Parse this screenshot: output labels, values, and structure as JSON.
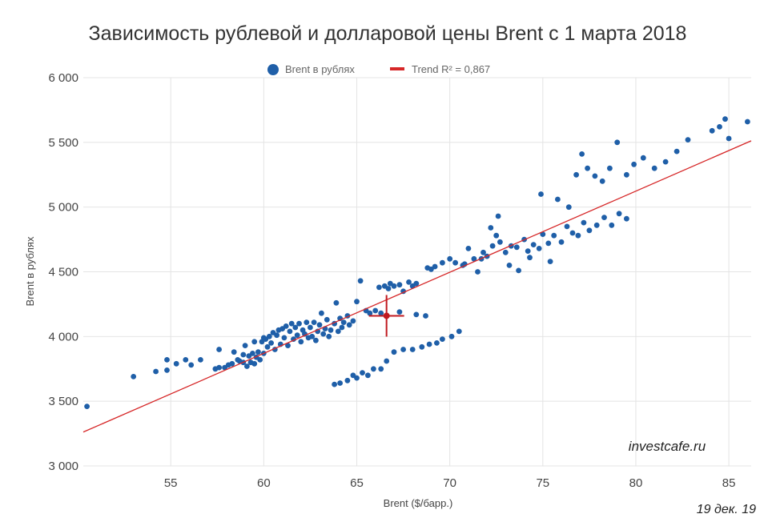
{
  "chart_data": {
    "type": "scatter",
    "title": "Зависимость рублевой и долларовой цены Brent с 1 марта 2018",
    "xlabel": "Brent ($/барр.)",
    "ylabel": "Brent в рублях",
    "xlim": [
      50.3,
      86.2
    ],
    "ylim": [
      3000,
      6000
    ],
    "xticks": [
      55,
      60,
      65,
      70,
      75,
      80,
      85
    ],
    "yticks": [
      3000,
      3500,
      4000,
      4500,
      5000,
      5500,
      6000
    ],
    "xtick_labels": [
      "55",
      "60",
      "65",
      "70",
      "75",
      "80",
      "85"
    ],
    "ytick_labels": [
      "3 000",
      "3 500",
      "4 000",
      "4 500",
      "5 000",
      "5 500",
      "6 000"
    ],
    "grid": true,
    "legend_position": "top-center",
    "colors": {
      "series": "#1f5fa8",
      "trend": "#d62728",
      "cross": "#c0191f"
    },
    "series": [
      {
        "name": "Brent в рублях",
        "points": [
          [
            50.5,
            3460
          ],
          [
            53.0,
            3690
          ],
          [
            54.2,
            3730
          ],
          [
            54.8,
            3740
          ],
          [
            54.8,
            3820
          ],
          [
            55.3,
            3790
          ],
          [
            55.8,
            3820
          ],
          [
            56.1,
            3780
          ],
          [
            56.6,
            3820
          ],
          [
            57.4,
            3750
          ],
          [
            57.6,
            3900
          ],
          [
            57.6,
            3760
          ],
          [
            57.9,
            3760
          ],
          [
            58.1,
            3780
          ],
          [
            58.3,
            3790
          ],
          [
            58.4,
            3880
          ],
          [
            58.6,
            3820
          ],
          [
            58.7,
            3810
          ],
          [
            58.9,
            3860
          ],
          [
            58.9,
            3800
          ],
          [
            59.0,
            3930
          ],
          [
            59.1,
            3770
          ],
          [
            59.2,
            3850
          ],
          [
            59.3,
            3800
          ],
          [
            59.4,
            3870
          ],
          [
            59.5,
            3790
          ],
          [
            59.5,
            3960
          ],
          [
            59.6,
            3840
          ],
          [
            59.7,
            3880
          ],
          [
            59.8,
            3820
          ],
          [
            59.9,
            3960
          ],
          [
            60.0,
            3870
          ],
          [
            60.0,
            3990
          ],
          [
            60.1,
            3980
          ],
          [
            60.2,
            3920
          ],
          [
            60.3,
            4000
          ],
          [
            60.4,
            3950
          ],
          [
            60.5,
            4030
          ],
          [
            60.6,
            3900
          ],
          [
            60.7,
            4010
          ],
          [
            60.8,
            4050
          ],
          [
            60.9,
            3940
          ],
          [
            61.0,
            4060
          ],
          [
            61.1,
            3990
          ],
          [
            61.2,
            4080
          ],
          [
            61.3,
            3930
          ],
          [
            61.4,
            4040
          ],
          [
            61.5,
            4100
          ],
          [
            61.6,
            3980
          ],
          [
            61.7,
            4070
          ],
          [
            61.8,
            4010
          ],
          [
            61.9,
            4100
          ],
          [
            62.0,
            3960
          ],
          [
            62.1,
            4050
          ],
          [
            62.2,
            4020
          ],
          [
            62.3,
            4110
          ],
          [
            62.4,
            3990
          ],
          [
            62.5,
            4070
          ],
          [
            62.6,
            4000
          ],
          [
            62.7,
            4110
          ],
          [
            62.8,
            3970
          ],
          [
            62.9,
            4040
          ],
          [
            63.0,
            4090
          ],
          [
            63.1,
            4180
          ],
          [
            63.2,
            4020
          ],
          [
            63.3,
            4060
          ],
          [
            63.4,
            4130
          ],
          [
            63.5,
            4000
          ],
          [
            63.6,
            4050
          ],
          [
            63.8,
            4100
          ],
          [
            63.9,
            4260
          ],
          [
            64.0,
            4040
          ],
          [
            64.1,
            4140
          ],
          [
            64.2,
            4070
          ],
          [
            64.3,
            4110
          ],
          [
            64.5,
            4160
          ],
          [
            64.6,
            4090
          ],
          [
            64.8,
            4120
          ],
          [
            65.0,
            4270
          ],
          [
            65.2,
            4430
          ],
          [
            65.5,
            4200
          ],
          [
            65.7,
            4180
          ],
          [
            66.0,
            4200
          ],
          [
            66.2,
            4380
          ],
          [
            66.3,
            4180
          ],
          [
            66.5,
            4390
          ],
          [
            66.7,
            4370
          ],
          [
            66.8,
            4410
          ],
          [
            67.0,
            4390
          ],
          [
            67.3,
            4400
          ],
          [
            67.5,
            4350
          ],
          [
            67.8,
            4420
          ],
          [
            68.0,
            4390
          ],
          [
            68.2,
            4410
          ],
          [
            63.8,
            3630
          ],
          [
            64.1,
            3640
          ],
          [
            64.5,
            3660
          ],
          [
            64.8,
            3700
          ],
          [
            65.0,
            3680
          ],
          [
            65.3,
            3720
          ],
          [
            65.6,
            3700
          ],
          [
            65.9,
            3750
          ],
          [
            66.3,
            3750
          ],
          [
            66.6,
            3810
          ],
          [
            67.0,
            3880
          ],
          [
            67.5,
            3900
          ],
          [
            68.0,
            3900
          ],
          [
            68.5,
            3920
          ],
          [
            68.9,
            3940
          ],
          [
            69.3,
            3950
          ],
          [
            69.6,
            3980
          ],
          [
            70.1,
            4000
          ],
          [
            70.5,
            4040
          ],
          [
            67.3,
            4190
          ],
          [
            68.2,
            4170
          ],
          [
            68.7,
            4160
          ],
          [
            68.8,
            4530
          ],
          [
            69.0,
            4520
          ],
          [
            69.2,
            4540
          ],
          [
            69.6,
            4570
          ],
          [
            70.0,
            4600
          ],
          [
            70.3,
            4570
          ],
          [
            70.8,
            4560
          ],
          [
            71.0,
            4680
          ],
          [
            71.3,
            4600
          ],
          [
            71.5,
            4500
          ],
          [
            71.8,
            4650
          ],
          [
            72.0,
            4620
          ],
          [
            72.3,
            4700
          ],
          [
            72.5,
            4780
          ],
          [
            72.7,
            4730
          ],
          [
            73.0,
            4650
          ],
          [
            73.3,
            4700
          ],
          [
            73.6,
            4690
          ],
          [
            74.0,
            4750
          ],
          [
            74.2,
            4660
          ],
          [
            74.5,
            4710
          ],
          [
            74.8,
            4680
          ],
          [
            75.0,
            4790
          ],
          [
            75.3,
            4720
          ],
          [
            75.6,
            4780
          ],
          [
            76.0,
            4730
          ],
          [
            76.3,
            4850
          ],
          [
            76.6,
            4800
          ],
          [
            76.9,
            4780
          ],
          [
            77.2,
            4880
          ],
          [
            77.5,
            4820
          ],
          [
            77.9,
            4860
          ],
          [
            78.3,
            4920
          ],
          [
            78.7,
            4860
          ],
          [
            79.1,
            4950
          ],
          [
            79.5,
            4910
          ],
          [
            70.7,
            4550
          ],
          [
            71.7,
            4600
          ],
          [
            72.2,
            4840
          ],
          [
            72.6,
            4930
          ],
          [
            73.2,
            4550
          ],
          [
            73.7,
            4510
          ],
          [
            74.3,
            4610
          ],
          [
            74.9,
            5100
          ],
          [
            75.4,
            4580
          ],
          [
            75.8,
            5060
          ],
          [
            76.4,
            5000
          ],
          [
            76.8,
            5250
          ],
          [
            77.1,
            5410
          ],
          [
            77.4,
            5300
          ],
          [
            77.8,
            5240
          ],
          [
            78.2,
            5200
          ],
          [
            78.6,
            5300
          ],
          [
            79.0,
            5500
          ],
          [
            79.5,
            5250
          ],
          [
            79.9,
            5330
          ],
          [
            80.4,
            5380
          ],
          [
            81.0,
            5300
          ],
          [
            81.6,
            5350
          ],
          [
            82.2,
            5430
          ],
          [
            82.8,
            5520
          ],
          [
            84.1,
            5590
          ],
          [
            84.5,
            5620
          ],
          [
            84.8,
            5680
          ],
          [
            85.0,
            5530
          ],
          [
            86.0,
            5660
          ]
        ]
      },
      {
        "name": "Trend R² = 0,867",
        "trend_line": [
          [
            50.3,
            3262
          ],
          [
            86.2,
            5512
          ]
        ]
      }
    ],
    "highlight_point": [
      66.6,
      4160
    ]
  },
  "watermark": "investcafe.ru",
  "date_label": "19 дек. 19"
}
